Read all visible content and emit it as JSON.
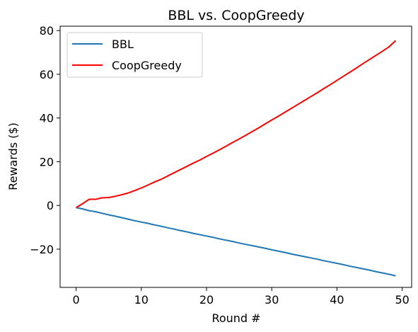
{
  "chart_data": {
    "type": "line",
    "title": "BBL vs. CoopGreedy",
    "xlabel": "Round #",
    "ylabel": "Rewards ($)",
    "xlim": [
      -2.45,
      51.45
    ],
    "ylim": [
      -37.5,
      82
    ],
    "xticks": [
      0,
      10,
      20,
      30,
      40,
      50
    ],
    "yticks": [
      -20,
      0,
      20,
      40,
      60,
      80
    ],
    "xtick_labels": [
      "0",
      "10",
      "20",
      "30",
      "40",
      "50"
    ],
    "ytick_labels": [
      "−20",
      "0",
      "20",
      "40",
      "60",
      "80"
    ],
    "grid": false,
    "legend_position": "top-left",
    "x": [
      0,
      1,
      2,
      3,
      4,
      5,
      6,
      7,
      8,
      9,
      10,
      11,
      12,
      13,
      14,
      15,
      16,
      17,
      18,
      19,
      20,
      21,
      22,
      23,
      24,
      25,
      26,
      27,
      28,
      29,
      30,
      31,
      32,
      33,
      34,
      35,
      36,
      37,
      38,
      39,
      40,
      41,
      42,
      43,
      44,
      45,
      46,
      47,
      48,
      49
    ],
    "series": [
      {
        "name": "BBL",
        "color": "#1f77b4",
        "values": [
          -1.0,
          -1.6,
          -2.4,
          -2.9,
          -3.6,
          -4.3,
          -4.9,
          -5.6,
          -6.3,
          -7.0,
          -7.6,
          -8.2,
          -8.9,
          -9.5,
          -10.2,
          -10.8,
          -11.5,
          -12.1,
          -12.8,
          -13.4,
          -14.0,
          -14.6,
          -15.3,
          -15.9,
          -16.5,
          -17.2,
          -17.8,
          -18.4,
          -19.0,
          -19.6,
          -20.3,
          -20.9,
          -21.5,
          -22.2,
          -22.8,
          -23.4,
          -24.0,
          -24.6,
          -25.3,
          -25.9,
          -26.5,
          -27.1,
          -27.8,
          -28.4,
          -29.0,
          -29.6,
          -30.3,
          -30.9,
          -31.5,
          -32.2
        ]
      },
      {
        "name": "CoopGreedy",
        "color": "#ff0000",
        "values": [
          -1.0,
          0.8,
          2.8,
          2.8,
          3.5,
          3.6,
          4.2,
          4.9,
          5.7,
          6.8,
          8.0,
          9.3,
          10.7,
          11.9,
          13.4,
          14.9,
          16.4,
          17.9,
          19.4,
          20.8,
          22.4,
          23.9,
          25.5,
          27.1,
          28.8,
          30.4,
          32.1,
          33.8,
          35.5,
          37.3,
          39.1,
          40.8,
          42.6,
          44.4,
          46.2,
          48.0,
          49.8,
          51.6,
          53.5,
          55.3,
          57.2,
          59.1,
          61.0,
          62.9,
          64.9,
          66.8,
          68.7,
          70.6,
          72.6,
          75.4
        ]
      }
    ]
  }
}
